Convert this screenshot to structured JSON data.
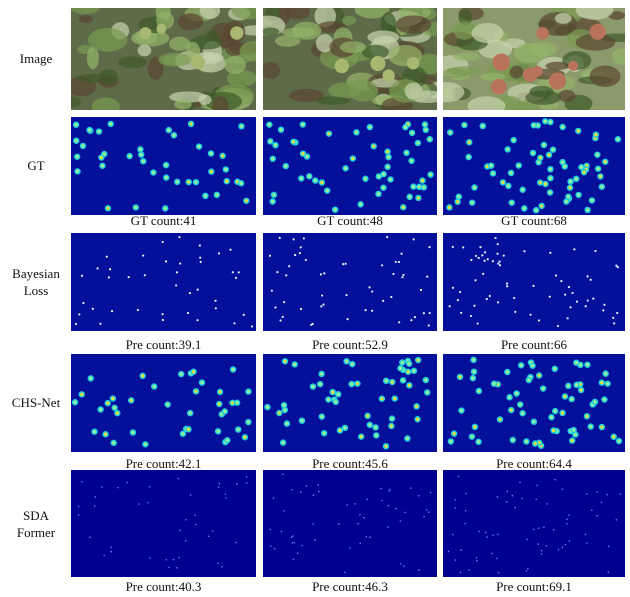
{
  "rows": [
    {
      "label": "Image"
    },
    {
      "label": "GT",
      "captions": [
        "GT count:41",
        "GT count:48",
        "GT count:68"
      ]
    },
    {
      "label": "Bayesian Loss",
      "captions": [
        "Pre count:39.1",
        "Pre count:52.9",
        "Pre count:66"
      ]
    },
    {
      "label": "CHS-Net",
      "captions": [
        "Pre count:42.1",
        "Pre count:45.6",
        "Pre count:64.4"
      ]
    },
    {
      "label": "SDA Former",
      "captions": [
        "Pre count:40.3",
        "Pre count:46.3",
        "Pre count:69.1"
      ]
    }
  ]
}
